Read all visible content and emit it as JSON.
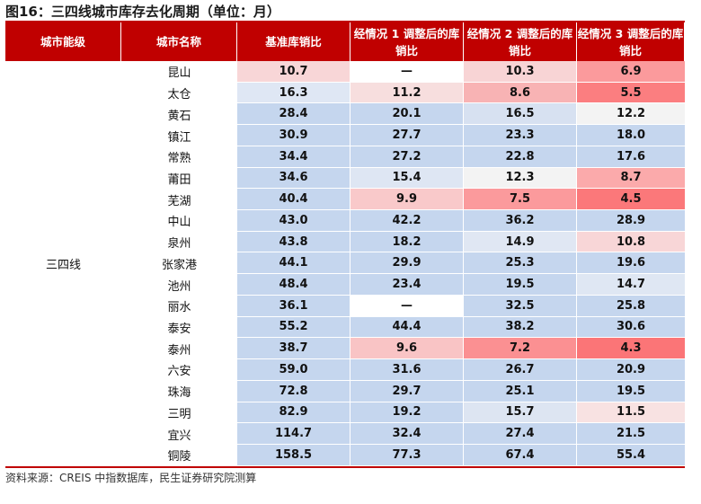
{
  "title": "图16：三四线城市库存去化周期（单位：月）",
  "headers": [
    "城市能级",
    "城市名称",
    "基准库销比",
    "经情况 1 调整后的库销比",
    "经情况 2 调整后的库销比",
    "经情况 3 调整后的库销比"
  ],
  "tier": "三四线",
  "rows": [
    {
      "city": "昆山",
      "values": [
        "10.7",
        "—",
        "10.3",
        "6.9"
      ],
      "colors": [
        "#f8d6d7",
        "#ffffff",
        "#f8d4d5",
        "#fb9a9c"
      ]
    },
    {
      "city": "太仓",
      "values": [
        "16.3",
        "11.2",
        "8.6",
        "5.5"
      ],
      "colors": [
        "#dfe7f4",
        "#f7dede",
        "#f8b3b4",
        "#fb7e80"
      ]
    },
    {
      "city": "黄石",
      "values": [
        "28.4",
        "20.1",
        "16.5",
        "12.2"
      ],
      "colors": [
        "#c5d6ee",
        "#c5d6ee",
        "#d7e1f1",
        "#f3f3f3"
      ]
    },
    {
      "city": "镇江",
      "values": [
        "30.9",
        "27.7",
        "23.3",
        "18.0"
      ],
      "colors": [
        "#c5d6ee",
        "#c5d6ee",
        "#c5d6ee",
        "#c5d6ee"
      ]
    },
    {
      "city": "常熟",
      "values": [
        "34.4",
        "27.2",
        "22.8",
        "17.6"
      ],
      "colors": [
        "#c5d6ee",
        "#c5d6ee",
        "#c5d6ee",
        "#c5d6ee"
      ]
    },
    {
      "city": "莆田",
      "values": [
        "34.6",
        "15.4",
        "12.3",
        "8.7"
      ],
      "colors": [
        "#c5d6ee",
        "#dee6f3",
        "#f3f3f3",
        "#fbaaab"
      ]
    },
    {
      "city": "芜湖",
      "values": [
        "40.4",
        "9.9",
        "7.5",
        "4.5"
      ],
      "colors": [
        "#c5d6ee",
        "#f9c9ca",
        "#fb9a9c",
        "#fb787a"
      ]
    },
    {
      "city": "中山",
      "values": [
        "43.0",
        "42.2",
        "36.2",
        "28.9"
      ],
      "colors": [
        "#c5d6ee",
        "#c5d6ee",
        "#c5d6ee",
        "#c5d6ee"
      ]
    },
    {
      "city": "泉州",
      "values": [
        "43.8",
        "18.2",
        "14.9",
        "10.8"
      ],
      "colors": [
        "#c5d6ee",
        "#c5d6ee",
        "#e0e7f3",
        "#f8d6d7"
      ]
    },
    {
      "city": "张家港",
      "values": [
        "44.1",
        "29.9",
        "25.3",
        "19.6"
      ],
      "colors": [
        "#c5d6ee",
        "#c5d6ee",
        "#c5d6ee",
        "#c5d6ee"
      ]
    },
    {
      "city": "池州",
      "values": [
        "48.4",
        "23.4",
        "19.5",
        "14.7"
      ],
      "colors": [
        "#c5d6ee",
        "#c5d6ee",
        "#c5d6ee",
        "#dfe7f3"
      ]
    },
    {
      "city": "丽水",
      "values": [
        "36.1",
        "—",
        "32.5",
        "25.8"
      ],
      "colors": [
        "#c5d6ee",
        "#ffffff",
        "#c5d6ee",
        "#c5d6ee"
      ]
    },
    {
      "city": "泰安",
      "values": [
        "55.2",
        "44.4",
        "38.2",
        "30.6"
      ],
      "colors": [
        "#c5d6ee",
        "#c5d6ee",
        "#c5d6ee",
        "#c5d6ee"
      ]
    },
    {
      "city": "泰州",
      "values": [
        "38.7",
        "9.6",
        "7.2",
        "4.3"
      ],
      "colors": [
        "#c5d6ee",
        "#f9c4c5",
        "#fb9092",
        "#fb7577"
      ]
    },
    {
      "city": "六安",
      "values": [
        "59.0",
        "31.6",
        "26.7",
        "20.9"
      ],
      "colors": [
        "#c5d6ee",
        "#c5d6ee",
        "#c5d6ee",
        "#c5d6ee"
      ]
    },
    {
      "city": "珠海",
      "values": [
        "72.8",
        "29.7",
        "25.1",
        "19.5"
      ],
      "colors": [
        "#c5d6ee",
        "#c5d6ee",
        "#c5d6ee",
        "#c5d6ee"
      ]
    },
    {
      "city": "三明",
      "values": [
        "82.9",
        "19.2",
        "15.7",
        "11.5"
      ],
      "colors": [
        "#c5d6ee",
        "#c5d6ee",
        "#dde5f2",
        "#f8e2e2"
      ]
    },
    {
      "city": "宜兴",
      "values": [
        "114.7",
        "32.4",
        "27.4",
        "21.5"
      ],
      "colors": [
        "#c5d6ee",
        "#c5d6ee",
        "#c5d6ee",
        "#c5d6ee"
      ]
    },
    {
      "city": "铜陵",
      "values": [
        "158.5",
        "77.3",
        "67.4",
        "55.4"
      ],
      "colors": [
        "#c5d6ee",
        "#c5d6ee",
        "#c5d6ee",
        "#c5d6ee"
      ]
    }
  ],
  "source": "资料来源：CREIS 中指数据库，民生证券研究院测算"
}
